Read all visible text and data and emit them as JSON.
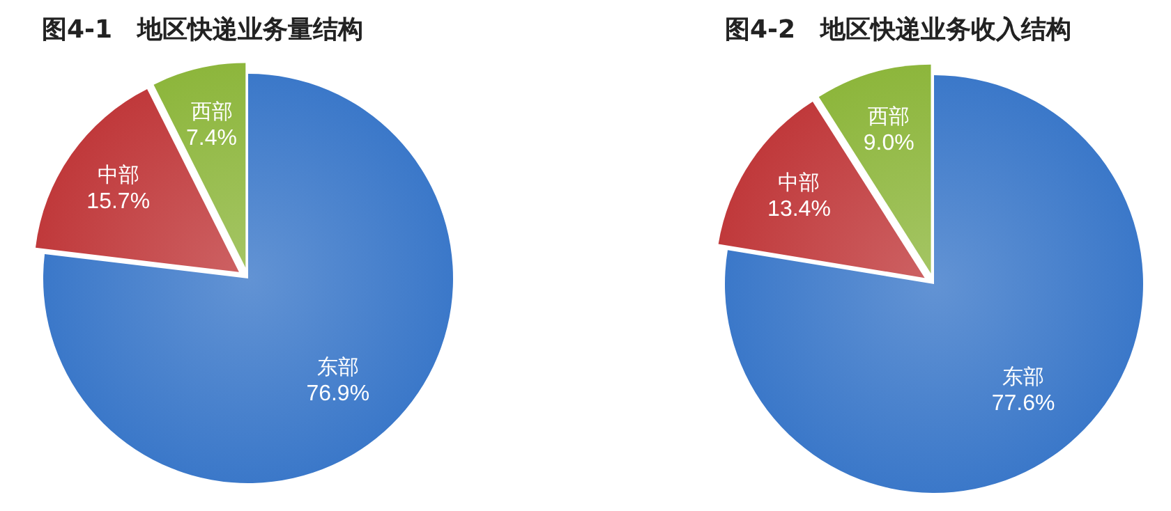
{
  "chart_data": [
    {
      "type": "pie",
      "title": "图4-1　地区快递业务量结构",
      "categories": [
        "东部",
        "中部",
        "西部"
      ],
      "values": [
        76.9,
        15.7,
        7.4
      ],
      "colors": [
        "#3b78c9",
        "#c0393b",
        "#8db63c"
      ],
      "value_labels": [
        "76.9%",
        "15.7%",
        "7.4%"
      ]
    },
    {
      "type": "pie",
      "title": "图4-2　地区快递业务收入结构",
      "categories": [
        "东部",
        "中部",
        "西部"
      ],
      "values": [
        77.6,
        13.4,
        9.0
      ],
      "colors": [
        "#3b78c9",
        "#c0393b",
        "#8db63c"
      ],
      "value_labels": [
        "77.6%",
        "13.4%",
        "9.0%"
      ]
    }
  ]
}
